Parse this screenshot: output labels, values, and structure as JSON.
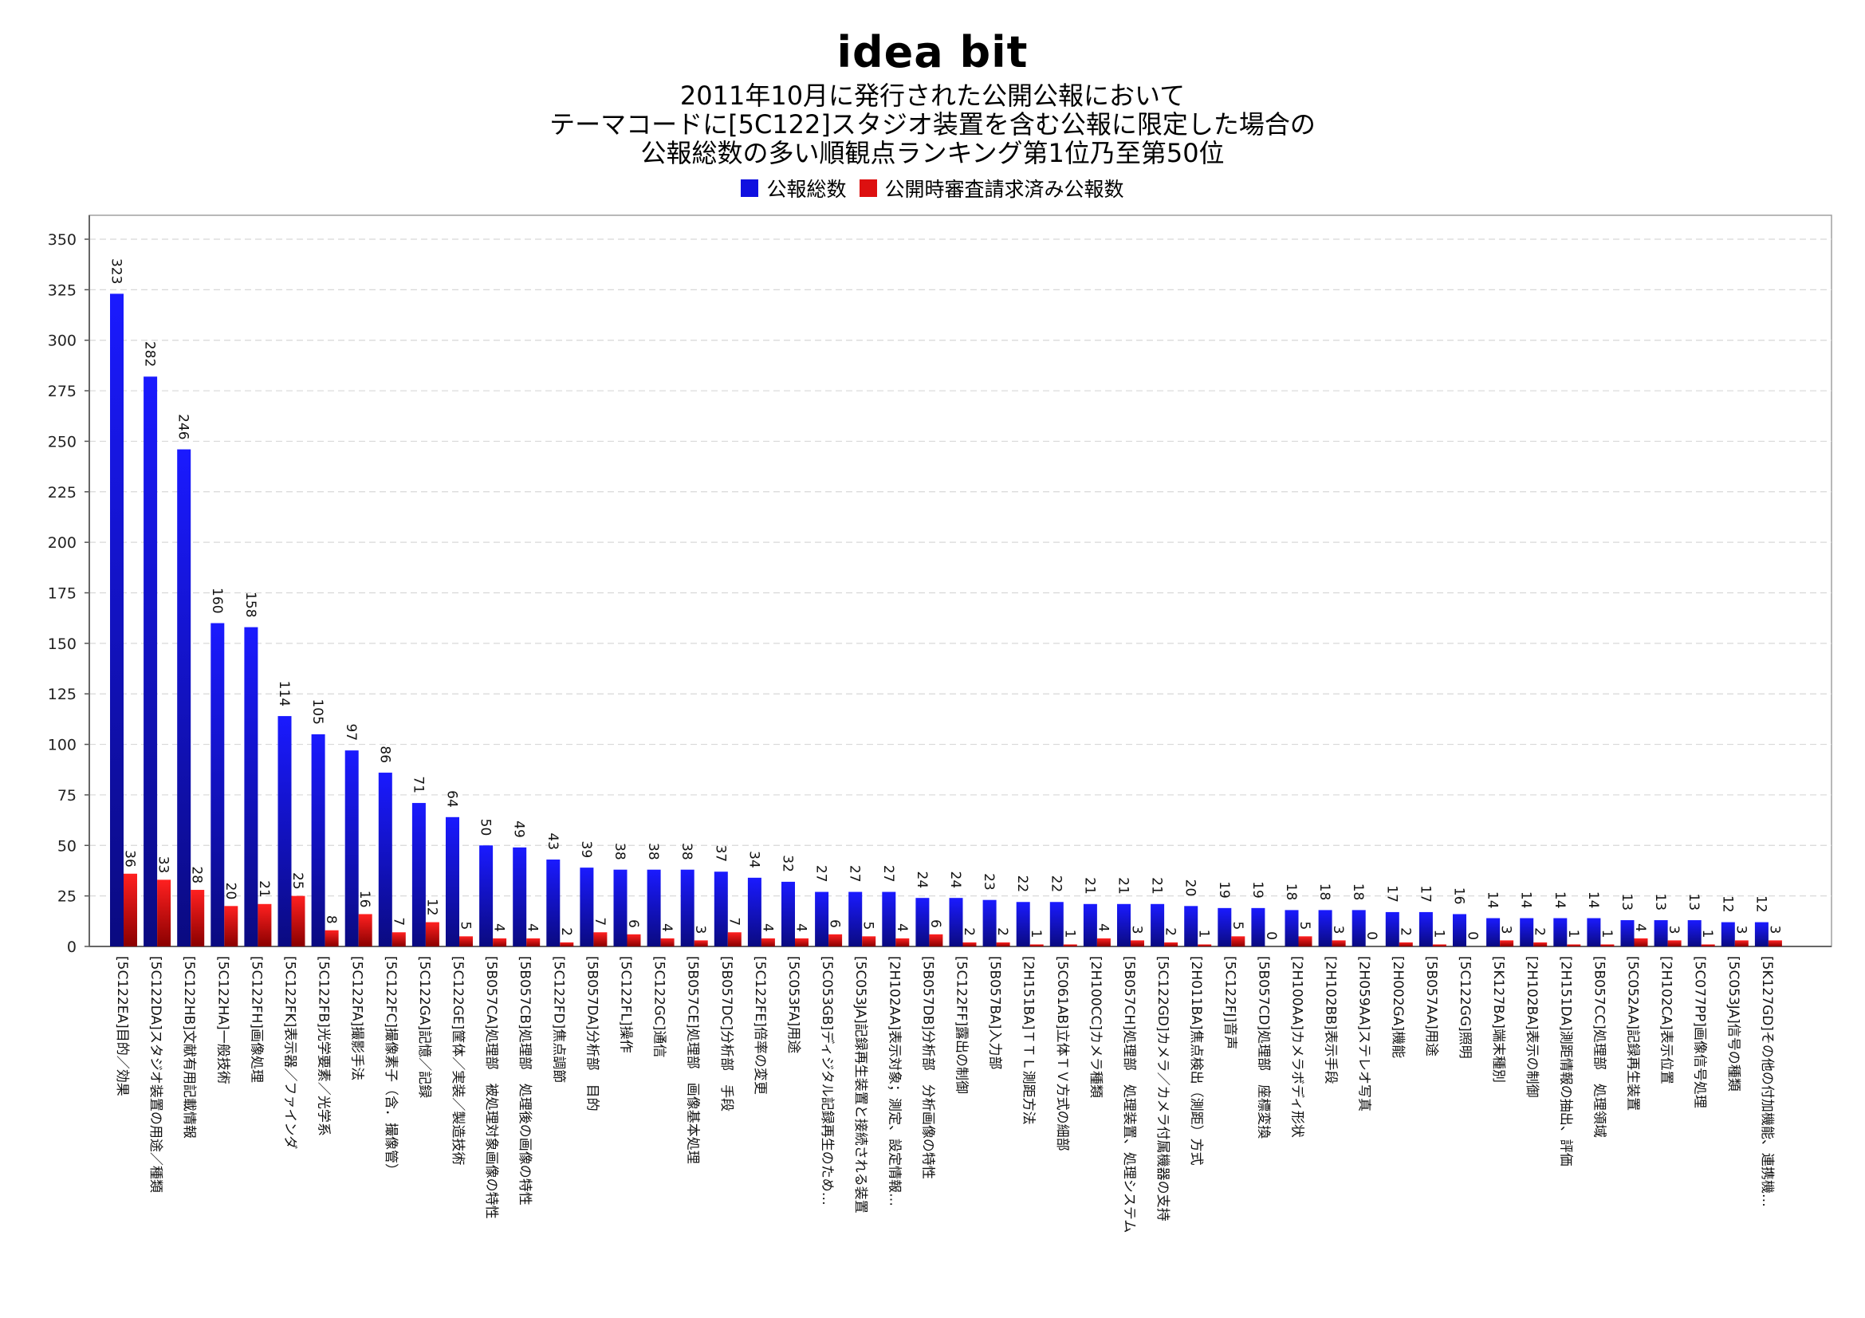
{
  "brand": "idea bit",
  "title_lines": [
    "2011年10月に発行された公開公報において",
    "テーマコードに[5C122]スタジオ装置を含む公報に限定した場合の",
    "公報総数の多い順観点ランキング第1位乃至第50位"
  ],
  "colors": {
    "total": "#1010e0",
    "requested": "#dd1010"
  },
  "chart_data": {
    "type": "bar",
    "ylim": [
      0,
      350
    ],
    "yticks": [
      0,
      25,
      50,
      75,
      100,
      125,
      150,
      175,
      200,
      225,
      250,
      275,
      300,
      325,
      350
    ],
    "grid": true,
    "legend_position": "top-center",
    "categories": [
      "[5C122EA]目的／効果",
      "[5C122DA]スタジオ装置の用途／種類",
      "[5C122HB]文献有用記載情報",
      "[5C122HA]一般技術",
      "[5C122FH]画像処理",
      "[5C122FK]表示器／ファインダ",
      "[5C122FB]光学要素／光学系",
      "[5C122FA]撮影手法",
      "[5C122FC]撮像素子（含．撮像管）",
      "[5C122GA]記憶／記録",
      "[5C122GE]筐体／実装／製造技術",
      "[5B057CA]処理部　被処理対象画像の特性",
      "[5B057CB]処理部　処理後の画像の特性",
      "[5C122FD]焦点調節",
      "[5B057DA]分析部　目的",
      "[5C122FL]操作",
      "[5C122GC]通信",
      "[5B057CE]処理部　画像基本処理",
      "[5B057DC]分析部　手段",
      "[5C122FE]倍率の変更",
      "[5C053FA]用途",
      "[5C053GB]ディジタル記録再生のため…",
      "[5C053JA]記録再生装置と接続される装置",
      "[2H102AA]表示対象；測定、設定情報…",
      "[5B057DB]分析部　分析画像の特性",
      "[5C122FF]露出の制御",
      "[5B057BA]入力部",
      "[2H151BA]ＴＴＬ測距方法",
      "[5C061AB]立体ＴＶ方式の細部",
      "[2H100CC]カメラ種類",
      "[5B057CH]処理部　処理装置、処理システム",
      "[5C122GD]カメラ／カメラ付属機器の支持",
      "[2H011BA]焦点検出（測距）方式",
      "[5C122FJ]音声",
      "[5B057CD]処理部　座標変換",
      "[2H100AA]カメラボディ形状",
      "[2H102BB]表示手段",
      "[2H059AA]ステレオ写真",
      "[2H002GA]機能",
      "[5B057AA]用途",
      "[5C122GG]照明",
      "[5K127BA]端末種別",
      "[2H102BA]表示の制御",
      "[2H151DA]測距情報の抽出、評価",
      "[5B057CC]処理部　処理領域",
      "[5C052AA]記録再生装置",
      "[2H102CA]表示位置",
      "[5C077PP]画像信号処理",
      "[5C053JA]信号の種類",
      "[5K127GD]その他の付加機能、連携機…"
    ],
    "series": [
      {
        "name": "公報総数",
        "values": [
          323,
          282,
          246,
          160,
          158,
          114,
          105,
          97,
          86,
          71,
          64,
          50,
          49,
          43,
          39,
          38,
          38,
          38,
          37,
          34,
          32,
          27,
          27,
          27,
          24,
          24,
          23,
          22,
          22,
          21,
          21,
          21,
          20,
          19,
          19,
          18,
          18,
          18,
          17,
          17,
          16,
          14,
          14,
          14,
          14,
          13,
          13,
          13,
          12,
          12
        ]
      },
      {
        "name": "公開時審査請求済み公報数",
        "values": [
          36,
          33,
          28,
          20,
          21,
          25,
          8,
          16,
          7,
          12,
          5,
          4,
          4,
          2,
          7,
          6,
          4,
          3,
          7,
          4,
          4,
          6,
          5,
          4,
          6,
          2,
          2,
          1,
          1,
          4,
          3,
          2,
          1,
          5,
          0,
          5,
          3,
          0,
          2,
          1,
          0,
          3,
          2,
          1,
          1,
          4,
          3,
          1,
          3,
          3
        ]
      }
    ]
  }
}
